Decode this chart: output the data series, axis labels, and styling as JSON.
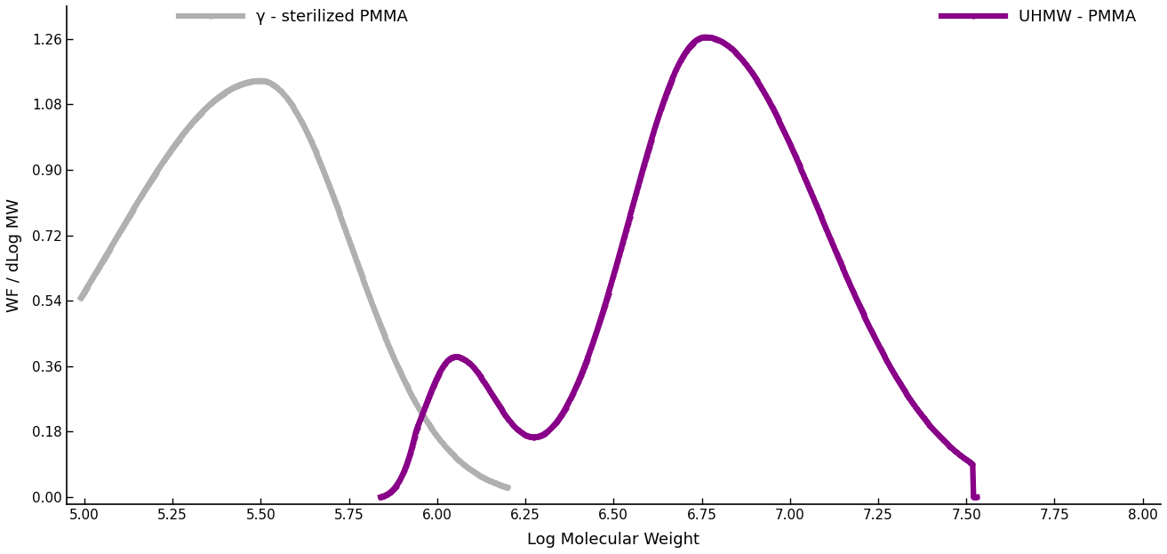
{
  "title": "",
  "xlabel": "Log Molecular Weight",
  "ylabel": "WF / dLog MW",
  "xlim": [
    4.95,
    8.05
  ],
  "ylim": [
    -0.02,
    1.35
  ],
  "xticks": [
    5.0,
    5.25,
    5.5,
    5.75,
    6.0,
    6.25,
    6.5,
    6.75,
    7.0,
    7.25,
    7.5,
    7.75,
    8.0
  ],
  "yticks": [
    0.0,
    0.18,
    0.36,
    0.54,
    0.72,
    0.9,
    1.08,
    1.26
  ],
  "gray_color": "#b0b0b0",
  "purple_color": "#880088",
  "gray_label": "γ - sterilized PMMA",
  "purple_label": "UHMW - PMMA",
  "line_width": 4.5,
  "marker_size": 4.5,
  "background_color": "#ffffff",
  "legend_fontsize": 13,
  "axis_fontsize": 13,
  "tick_fontsize": 11
}
